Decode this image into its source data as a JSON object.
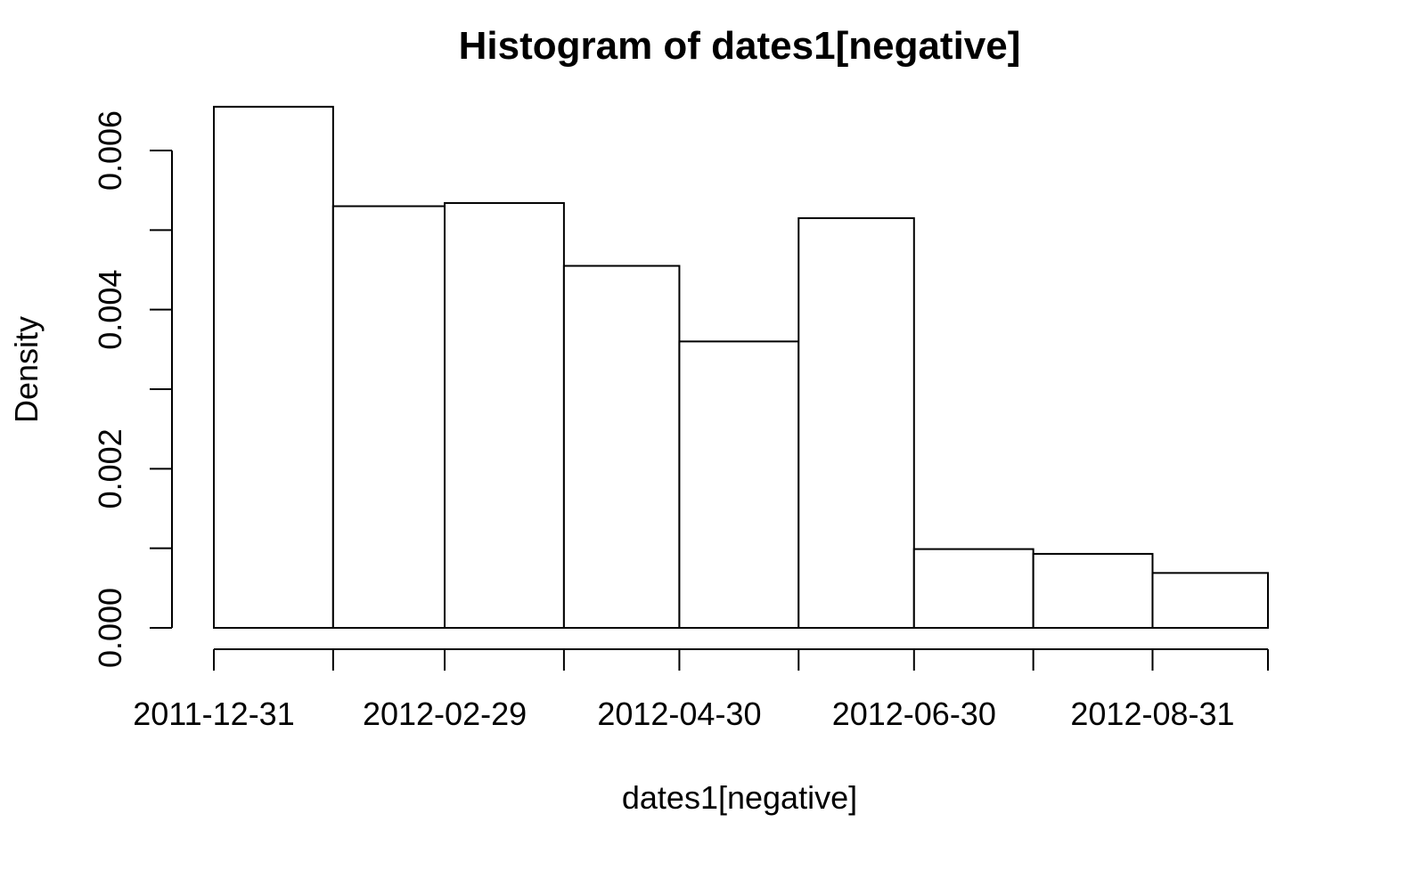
{
  "chart_data": {
    "type": "bar",
    "title": "Histogram of dates1[negative]",
    "xlabel": "dates1[negative]",
    "ylabel": "Density",
    "ylim": [
      0,
      0.0066
    ],
    "yticks": [
      0,
      0.001,
      0.002,
      0.003,
      0.004,
      0.005,
      0.006
    ],
    "ytick_labels": [
      "0.000",
      "",
      "0.002",
      "",
      "0.004",
      "",
      "0.006"
    ],
    "bins": [
      {
        "start": "2011-12-31",
        "end": "2012-01-31",
        "density": 0.00655
      },
      {
        "start": "2012-01-31",
        "end": "2012-02-29",
        "density": 0.0053
      },
      {
        "start": "2012-02-29",
        "end": "2012-03-31",
        "density": 0.00534
      },
      {
        "start": "2012-03-31",
        "end": "2012-04-30",
        "density": 0.00455
      },
      {
        "start": "2012-04-30",
        "end": "2012-05-31",
        "density": 0.0036
      },
      {
        "start": "2012-05-31",
        "end": "2012-06-30",
        "density": 0.00515
      },
      {
        "start": "2012-06-30",
        "end": "2012-07-31",
        "density": 0.00099
      },
      {
        "start": "2012-07-31",
        "end": "2012-08-31",
        "density": 0.00093
      },
      {
        "start": "2012-08-31",
        "end": "2012-09-30",
        "density": 0.00069
      }
    ],
    "xtick_dates": [
      "2011-12-31",
      "2012-01-31",
      "2012-02-29",
      "2012-03-31",
      "2012-04-30",
      "2012-05-31",
      "2012-06-30",
      "2012-07-31",
      "2012-08-31",
      "2012-09-30"
    ],
    "xtick_labels": [
      "2011-12-31",
      "",
      "2012-02-29",
      "",
      "2012-04-30",
      "",
      "2012-06-30",
      "",
      "2012-08-31",
      ""
    ],
    "grid": false,
    "legend": "none"
  }
}
